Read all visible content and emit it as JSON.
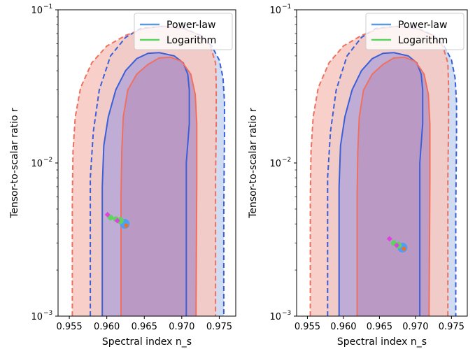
{
  "chart_data": [
    {
      "type": "scatter",
      "xlabel": "Spectral index n_s",
      "ylabel": "Tensor-to-scalar ratio r",
      "xlim": [
        0.9535,
        0.9772
      ],
      "ylim": [
        0.001,
        0.1
      ],
      "yscale": "log",
      "xticks": [
        "0.955",
        "0.960",
        "0.965",
        "0.970",
        "0.975"
      ],
      "xtick_values": [
        0.955,
        0.96,
        0.965,
        0.97,
        0.975
      ],
      "yticks": [
        "10",
        "10",
        "10"
      ],
      "ytick_exponents": [
        "−3",
        "−2",
        "−1"
      ],
      "ytick_values": [
        0.001,
        0.01,
        0.1
      ],
      "legend": {
        "placement": "top-right",
        "entries": [
          {
            "label": "Power-law",
            "color": "#5b9bd5"
          },
          {
            "label": "Logarithm",
            "color": "#5fd35f"
          }
        ]
      },
      "contours": [
        {
          "name": "blue-outer",
          "style": "dashed",
          "color": "#3a5fd9",
          "fill": "#c7d6f0",
          "points": [
            [
              0.9578,
              0.001
            ],
            [
              0.9578,
              0.008
            ],
            [
              0.9582,
              0.016
            ],
            [
              0.959,
              0.03
            ],
            [
              0.9605,
              0.05
            ],
            [
              0.9625,
              0.066
            ],
            [
              0.9645,
              0.0755
            ],
            [
              0.9675,
              0.078
            ],
            [
              0.9705,
              0.075
            ],
            [
              0.9725,
              0.068
            ],
            [
              0.974,
              0.058
            ],
            [
              0.975,
              0.047
            ],
            [
              0.9755,
              0.036
            ],
            [
              0.9757,
              0.025
            ],
            [
              0.9757,
              0.015
            ],
            [
              0.9756,
              0.005
            ],
            [
              0.9756,
              0.001
            ]
          ]
        },
        {
          "name": "red-outer",
          "style": "dashed",
          "color": "#f07060",
          "fill": "#f7c8c0",
          "points": [
            [
              0.9554,
              0.001
            ],
            [
              0.9554,
              0.006
            ],
            [
              0.9555,
              0.012
            ],
            [
              0.9558,
              0.02
            ],
            [
              0.9565,
              0.031
            ],
            [
              0.958,
              0.045
            ],
            [
              0.96,
              0.058
            ],
            [
              0.9625,
              0.068
            ],
            [
              0.965,
              0.0755
            ],
            [
              0.9675,
              0.078
            ],
            [
              0.97,
              0.076
            ],
            [
              0.9725,
              0.068
            ],
            [
              0.9738,
              0.058
            ],
            [
              0.9745,
              0.045
            ],
            [
              0.9746,
              0.032
            ],
            [
              0.9746,
              0.018
            ],
            [
              0.9745,
              0.008
            ],
            [
              0.9745,
              0.001
            ]
          ]
        },
        {
          "name": "blue-inner",
          "style": "solid",
          "color": "#3a5fd9",
          "fill": "#b7a8d8",
          "points": [
            [
              0.9594,
              0.001
            ],
            [
              0.9594,
              0.007
            ],
            [
              0.9596,
              0.013
            ],
            [
              0.9602,
              0.02
            ],
            [
              0.9612,
              0.03
            ],
            [
              0.9625,
              0.04
            ],
            [
              0.964,
              0.048
            ],
            [
              0.9655,
              0.052
            ],
            [
              0.967,
              0.0525
            ],
            [
              0.969,
              0.05
            ],
            [
              0.9702,
              0.045
            ],
            [
              0.9708,
              0.038
            ],
            [
              0.971,
              0.03
            ],
            [
              0.971,
              0.018
            ],
            [
              0.9706,
              0.01
            ],
            [
              0.9706,
              0.001
            ]
          ]
        },
        {
          "name": "red-inner",
          "style": "solid",
          "color": "#f07060",
          "fill": "#b896c2",
          "points": [
            [
              0.9619,
              0.001
            ],
            [
              0.9619,
              0.006
            ],
            [
              0.962,
              0.012
            ],
            [
              0.9622,
              0.02
            ],
            [
              0.9628,
              0.03
            ],
            [
              0.964,
              0.038
            ],
            [
              0.9655,
              0.044
            ],
            [
              0.967,
              0.0485
            ],
            [
              0.9685,
              0.049
            ],
            [
              0.97,
              0.046
            ],
            [
              0.9712,
              0.038
            ],
            [
              0.9718,
              0.028
            ],
            [
              0.972,
              0.018
            ],
            [
              0.972,
              0.008
            ],
            [
              0.9719,
              0.001
            ]
          ]
        }
      ],
      "points": [
        {
          "n_s": 0.9624,
          "r": 0.004,
          "color": "#4f9ef5",
          "size": 7
        },
        {
          "n_s": 0.9618,
          "r": 0.0042,
          "color": "#5fd35f",
          "size": 5
        },
        {
          "n_s": 0.9612,
          "r": 0.0043,
          "color": "#5fd35f",
          "size": 4
        },
        {
          "n_s": 0.9605,
          "r": 0.0044,
          "color": "#5fd35f",
          "size": 4
        },
        {
          "n_s": 0.9626,
          "r": 0.0039,
          "color": "#f07020",
          "size": 3
        },
        {
          "n_s": 0.9614,
          "r": 0.0042,
          "color": "#e040e0",
          "size": 3,
          "marker": "diamond"
        },
        {
          "n_s": 0.9601,
          "r": 0.0046,
          "color": "#e040e0",
          "size": 3,
          "marker": "diamond"
        }
      ]
    },
    {
      "type": "scatter",
      "xlabel": "Spectral index n_s",
      "ylabel": "Tensor-to-scalar ratio r",
      "xlim": [
        0.9535,
        0.9772
      ],
      "ylim": [
        0.001,
        0.1
      ],
      "yscale": "log",
      "xticks": [
        "0.955",
        "0.960",
        "0.965",
        "0.970",
        "0.975"
      ],
      "xtick_values": [
        0.955,
        0.96,
        0.965,
        0.97,
        0.975
      ],
      "yticks": [
        "10",
        "10",
        "10"
      ],
      "ytick_exponents": [
        "−3",
        "−2",
        "−1"
      ],
      "ytick_values": [
        0.001,
        0.01,
        0.1
      ],
      "legend": {
        "placement": "top-right",
        "entries": [
          {
            "label": "Power-law",
            "color": "#5b9bd5"
          },
          {
            "label": "Logarithm",
            "color": "#5fd35f"
          }
        ]
      },
      "contours": [
        {
          "name": "blue-outer",
          "style": "dashed",
          "color": "#3a5fd9",
          "fill": "#c7d6f0",
          "points": [
            [
              0.9578,
              0.001
            ],
            [
              0.9578,
              0.008
            ],
            [
              0.9582,
              0.016
            ],
            [
              0.959,
              0.03
            ],
            [
              0.9605,
              0.05
            ],
            [
              0.9625,
              0.066
            ],
            [
              0.9645,
              0.0755
            ],
            [
              0.9675,
              0.078
            ],
            [
              0.9705,
              0.075
            ],
            [
              0.9725,
              0.068
            ],
            [
              0.974,
              0.058
            ],
            [
              0.975,
              0.047
            ],
            [
              0.9755,
              0.036
            ],
            [
              0.9757,
              0.025
            ],
            [
              0.9757,
              0.015
            ],
            [
              0.9756,
              0.005
            ],
            [
              0.9756,
              0.001
            ]
          ]
        },
        {
          "name": "red-outer",
          "style": "dashed",
          "color": "#f07060",
          "fill": "#f7c8c0",
          "points": [
            [
              0.9554,
              0.001
            ],
            [
              0.9554,
              0.006
            ],
            [
              0.9555,
              0.012
            ],
            [
              0.9558,
              0.02
            ],
            [
              0.9565,
              0.031
            ],
            [
              0.958,
              0.045
            ],
            [
              0.96,
              0.058
            ],
            [
              0.9625,
              0.068
            ],
            [
              0.965,
              0.0755
            ],
            [
              0.9675,
              0.078
            ],
            [
              0.97,
              0.076
            ],
            [
              0.9725,
              0.068
            ],
            [
              0.9738,
              0.058
            ],
            [
              0.9745,
              0.045
            ],
            [
              0.9746,
              0.032
            ],
            [
              0.9746,
              0.018
            ],
            [
              0.9745,
              0.008
            ],
            [
              0.9745,
              0.001
            ]
          ]
        },
        {
          "name": "blue-inner",
          "style": "solid",
          "color": "#3a5fd9",
          "fill": "#b7a8d8",
          "points": [
            [
              0.9594,
              0.001
            ],
            [
              0.9594,
              0.007
            ],
            [
              0.9596,
              0.013
            ],
            [
              0.9602,
              0.02
            ],
            [
              0.9612,
              0.03
            ],
            [
              0.9625,
              0.04
            ],
            [
              0.964,
              0.048
            ],
            [
              0.9655,
              0.052
            ],
            [
              0.967,
              0.0525
            ],
            [
              0.969,
              0.05
            ],
            [
              0.9702,
              0.045
            ],
            [
              0.9708,
              0.038
            ],
            [
              0.971,
              0.03
            ],
            [
              0.971,
              0.018
            ],
            [
              0.9706,
              0.01
            ],
            [
              0.9706,
              0.001
            ]
          ]
        },
        {
          "name": "red-inner",
          "style": "solid",
          "color": "#f07060",
          "fill": "#b896c2",
          "points": [
            [
              0.9619,
              0.001
            ],
            [
              0.9619,
              0.006
            ],
            [
              0.962,
              0.012
            ],
            [
              0.9622,
              0.02
            ],
            [
              0.9628,
              0.03
            ],
            [
              0.964,
              0.038
            ],
            [
              0.9655,
              0.044
            ],
            [
              0.967,
              0.0485
            ],
            [
              0.9685,
              0.049
            ],
            [
              0.97,
              0.046
            ],
            [
              0.9712,
              0.038
            ],
            [
              0.9718,
              0.028
            ],
            [
              0.972,
              0.018
            ],
            [
              0.972,
              0.008
            ],
            [
              0.9719,
              0.001
            ]
          ]
        }
      ],
      "points": [
        {
          "n_s": 0.9682,
          "r": 0.0028,
          "color": "#4f9ef5",
          "size": 7
        },
        {
          "n_s": 0.9676,
          "r": 0.0029,
          "color": "#5fd35f",
          "size": 5
        },
        {
          "n_s": 0.967,
          "r": 0.003,
          "color": "#5fd35f",
          "size": 4
        },
        {
          "n_s": 0.9684,
          "r": 0.00275,
          "color": "#f07020",
          "size": 3
        },
        {
          "n_s": 0.9674,
          "r": 0.0029,
          "color": "#e040e0",
          "size": 3,
          "marker": "diamond"
        },
        {
          "n_s": 0.9664,
          "r": 0.0032,
          "color": "#e040e0",
          "size": 3,
          "marker": "diamond"
        }
      ]
    }
  ]
}
